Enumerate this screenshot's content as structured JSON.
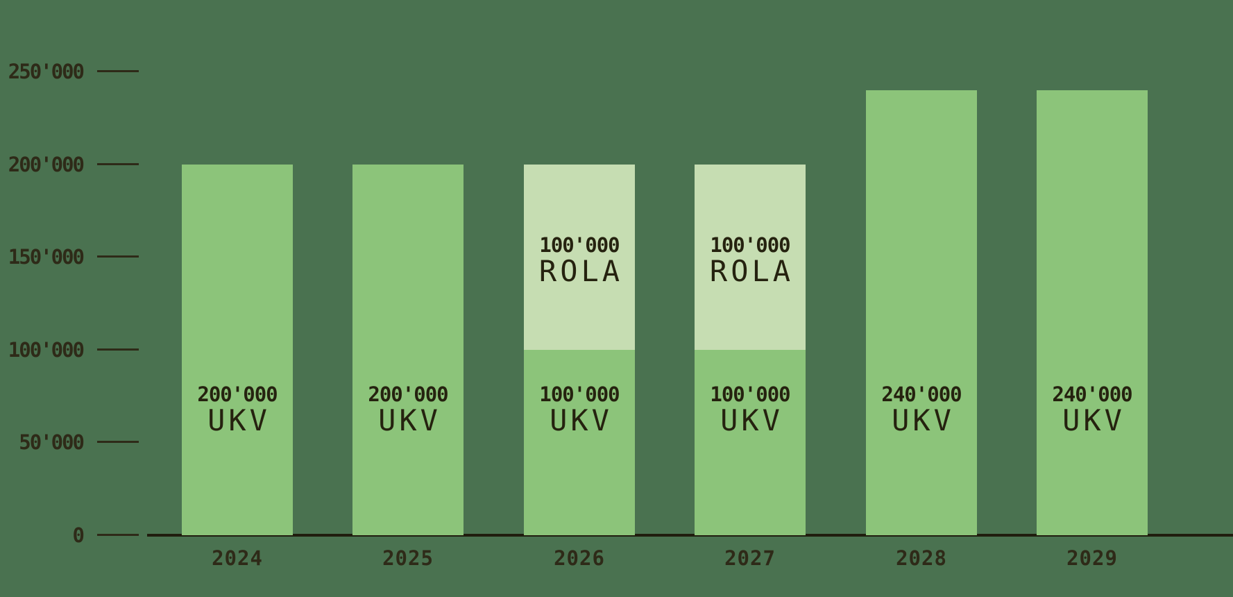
{
  "colors": {
    "background": "#4A7250",
    "bar_ukv": "#8CC47A",
    "bar_rola": "#C6DDB2",
    "label_text": "#25220F",
    "axis_text": "#2E2A18",
    "axis_line": "#201D0E"
  },
  "chart_data": {
    "type": "bar",
    "stacked": true,
    "categories": [
      "2024",
      "2025",
      "2026",
      "2027",
      "2028",
      "2029"
    ],
    "series": [
      {
        "name": "UKV",
        "values": [
          200000,
          200000,
          100000,
          100000,
          240000,
          240000
        ],
        "color": "#8CC47A"
      },
      {
        "name": "ROLA",
        "values": [
          0,
          0,
          100000,
          100000,
          0,
          0
        ],
        "color": "#C6DDB2"
      }
    ],
    "ylim": [
      0,
      250000
    ],
    "ytick_values": [
      0,
      50000,
      100000,
      150000,
      200000,
      250000
    ],
    "ytick_labels": [
      "0",
      "50'000",
      "100'000",
      "150'000",
      "200'000",
      "250'000"
    ],
    "grid": false,
    "legend": "none",
    "xlabel": "",
    "ylabel": "",
    "title": "",
    "bar_segment_labels": [
      {
        "category": "2024",
        "segments": [
          {
            "series": "UKV",
            "value_label": "200'000",
            "name_label": "UKV"
          }
        ]
      },
      {
        "category": "2025",
        "segments": [
          {
            "series": "UKV",
            "value_label": "200'000",
            "name_label": "UKV"
          }
        ]
      },
      {
        "category": "2026",
        "segments": [
          {
            "series": "UKV",
            "value_label": "100'000",
            "name_label": "UKV"
          },
          {
            "series": "ROLA",
            "value_label": "100'000",
            "name_label": "ROLA"
          }
        ]
      },
      {
        "category": "2027",
        "segments": [
          {
            "series": "UKV",
            "value_label": "100'000",
            "name_label": "UKV"
          },
          {
            "series": "ROLA",
            "value_label": "100'000",
            "name_label": "ROLA"
          }
        ]
      },
      {
        "category": "2028",
        "segments": [
          {
            "series": "UKV",
            "value_label": "240'000",
            "name_label": "UKV"
          }
        ]
      },
      {
        "category": "2029",
        "segments": [
          {
            "series": "UKV",
            "value_label": "240'000",
            "name_label": "UKV"
          }
        ]
      }
    ]
  }
}
